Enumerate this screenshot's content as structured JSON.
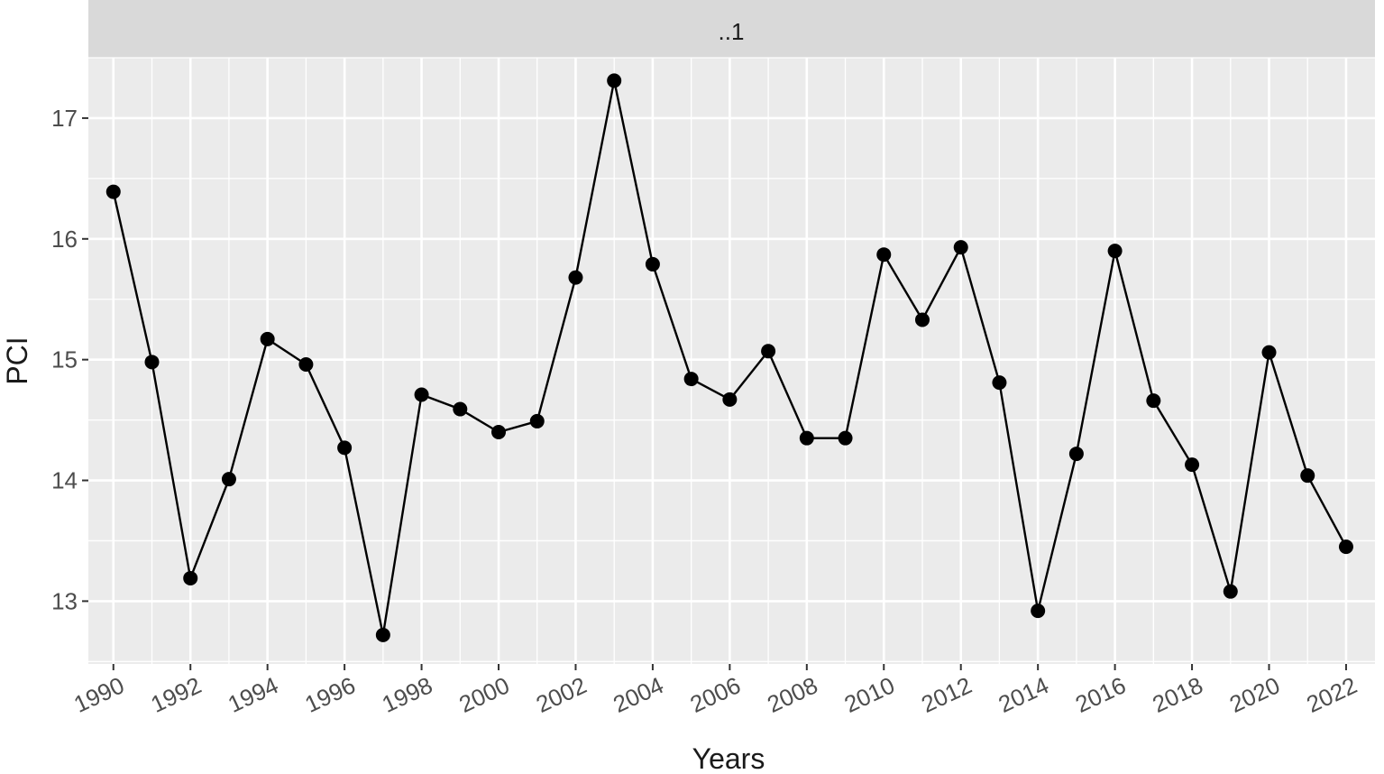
{
  "chart_data": {
    "type": "line",
    "strip_label": "..1",
    "xlabel": "Years",
    "ylabel": "PCI",
    "x_ticks": [
      1990,
      1992,
      1994,
      1996,
      1998,
      2000,
      2002,
      2004,
      2006,
      2008,
      2010,
      2012,
      2014,
      2016,
      2018,
      2020,
      2022
    ],
    "y_ticks": [
      13,
      14,
      15,
      16,
      17
    ],
    "xlim": [
      1989.35,
      2022.75
    ],
    "ylim": [
      12.48,
      17.5
    ],
    "grid": true,
    "series": [
      {
        "x": [
          1990,
          1991,
          1992,
          1993,
          1994,
          1995,
          1996,
          1997,
          1998,
          1999,
          2000,
          2001,
          2002,
          2003,
          2004,
          2005,
          2006,
          2007,
          2008,
          2009,
          2010,
          2011,
          2012,
          2013,
          2014,
          2015,
          2016,
          2017,
          2018,
          2019,
          2020,
          2021,
          2022
        ],
        "values": [
          16.39,
          14.98,
          13.19,
          14.01,
          15.17,
          14.96,
          14.27,
          12.72,
          14.71,
          14.59,
          14.4,
          14.49,
          15.68,
          17.31,
          15.79,
          14.84,
          14.67,
          15.07,
          14.35,
          14.35,
          15.87,
          15.33,
          15.93,
          14.81,
          12.92,
          14.22,
          15.9,
          14.66,
          14.13,
          13.08,
          15.06,
          14.04,
          13.45
        ]
      }
    ]
  }
}
